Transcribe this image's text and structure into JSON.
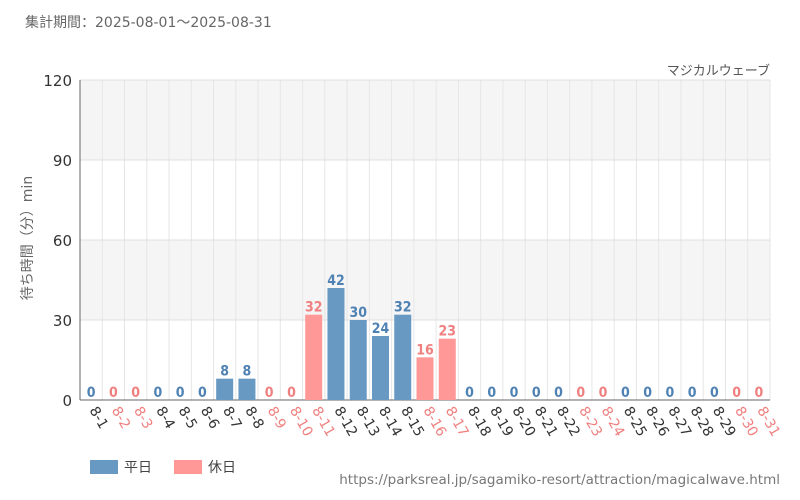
{
  "header": {
    "period": "集計期間：2025-08-01～2025-08-31"
  },
  "footer": {
    "source_url": "https://parksreal.jp/sagamiko-resort/attraction/magicalwave.html"
  },
  "colors": {
    "weekday": "#6899c3",
    "holiday": "#ff9896",
    "holiday_text": "#f08080",
    "weekday_text": "#4f82b3"
  },
  "chart_data": {
    "type": "bar",
    "title": "マジカルウェーブ",
    "ylabel": "待ち時間（分）min",
    "ylim": [
      0,
      120
    ],
    "yticks": [
      0,
      30,
      60,
      90,
      120
    ],
    "categories": [
      "8-1",
      "8-2",
      "8-3",
      "8-4",
      "8-5",
      "8-6",
      "8-7",
      "8-8",
      "8-9",
      "8-10",
      "8-11",
      "8-12",
      "8-13",
      "8-14",
      "8-15",
      "8-16",
      "8-17",
      "8-18",
      "8-19",
      "8-20",
      "8-21",
      "8-22",
      "8-23",
      "8-24",
      "8-25",
      "8-26",
      "8-27",
      "8-28",
      "8-29",
      "8-30",
      "8-31"
    ],
    "values": [
      0,
      0,
      0,
      0,
      0,
      0,
      8,
      8,
      0,
      0,
      32,
      42,
      30,
      24,
      32,
      16,
      23,
      0,
      0,
      0,
      0,
      0,
      0,
      0,
      0,
      0,
      0,
      0,
      0,
      0,
      0
    ],
    "day_type": [
      "weekday",
      "holiday",
      "holiday",
      "weekday",
      "weekday",
      "weekday",
      "weekday",
      "weekday",
      "holiday",
      "holiday",
      "holiday",
      "weekday",
      "weekday",
      "weekday",
      "weekday",
      "holiday",
      "holiday",
      "weekday",
      "weekday",
      "weekday",
      "weekday",
      "weekday",
      "holiday",
      "holiday",
      "weekday",
      "weekday",
      "weekday",
      "weekday",
      "weekday",
      "holiday",
      "holiday"
    ],
    "legend": [
      {
        "key": "weekday",
        "label": "平日"
      },
      {
        "key": "holiday",
        "label": "休日"
      }
    ],
    "grid": true,
    "legend_position": "bottom-left"
  }
}
